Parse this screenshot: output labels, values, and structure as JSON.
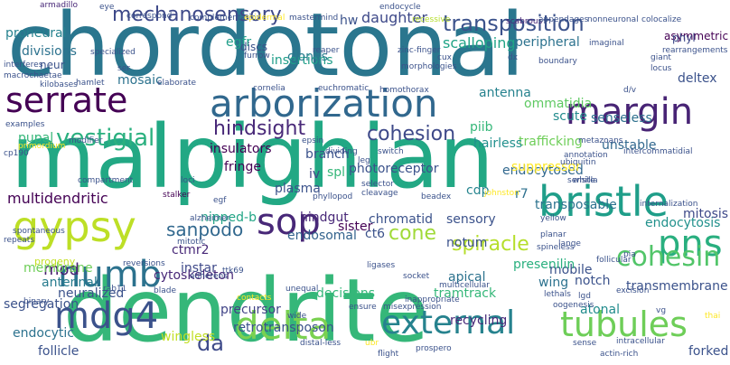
{
  "words": [
    {
      "text": "chordotonal",
      "color": "#2a768e",
      "weight": "xl"
    },
    {
      "text": "malpighian",
      "color": "#22a884",
      "weight": "xl"
    },
    {
      "text": "dendrite",
      "color": "#35b779",
      "weight": "xl"
    },
    {
      "text": "serrate",
      "color": "#440154",
      "weight": "l"
    },
    {
      "text": "arborization",
      "color": "#31688e",
      "weight": "l"
    },
    {
      "text": "margin",
      "color": "#482475",
      "weight": "l"
    },
    {
      "text": "gypsy",
      "color": "#bddf26",
      "weight": "l"
    },
    {
      "text": "bristle",
      "color": "#1f9e89",
      "weight": "l"
    },
    {
      "text": "numb",
      "color": "#2c728e",
      "weight": "l"
    },
    {
      "text": "mdg4",
      "color": "#3b528b",
      "weight": "l"
    },
    {
      "text": "sop",
      "color": "#482878",
      "weight": "l"
    },
    {
      "text": "delta",
      "color": "#7ad151",
      "weight": "l"
    },
    {
      "text": "external",
      "color": "#26828e",
      "weight": "l"
    },
    {
      "text": "tubules",
      "color": "#6ece58",
      "weight": "l"
    },
    {
      "text": "pns",
      "color": "#29af7f",
      "weight": "l"
    },
    {
      "text": "cohesin",
      "color": "#52c569",
      "weight": "m"
    },
    {
      "text": "mechanosensory",
      "color": "#3e4989",
      "weight": "m"
    },
    {
      "text": "transposition",
      "color": "#3b528b",
      "weight": "m"
    },
    {
      "text": "vestigial",
      "color": "#2ab07f",
      "weight": "m"
    },
    {
      "text": "hindsight",
      "color": "#482878",
      "weight": "m"
    },
    {
      "text": "cohesion",
      "color": "#3e4989",
      "weight": "m"
    },
    {
      "text": "sanpodo",
      "color": "#31688e",
      "weight": "m"
    },
    {
      "text": "cone",
      "color": "#a0da39",
      "weight": "m"
    },
    {
      "text": "spiracle",
      "color": "#b5de2b",
      "weight": "m"
    },
    {
      "text": "mod",
      "color": "#481f70",
      "weight": "m"
    },
    {
      "text": "da",
      "color": "#3e4a89",
      "weight": "m"
    },
    {
      "text": "daughter",
      "color": "#3e4989",
      "weight": "s"
    },
    {
      "text": "scalloping",
      "color": "#20a486",
      "weight": "s"
    },
    {
      "text": "peripheral",
      "color": "#2c728e",
      "weight": "s"
    },
    {
      "text": "proneural",
      "color": "#26828e",
      "weight": "s"
    },
    {
      "text": "insertions",
      "color": "#1f9e89",
      "weight": "s"
    },
    {
      "text": "egfr",
      "color": "#1f9e89",
      "weight": "s"
    },
    {
      "text": "clones",
      "color": "#287c8e",
      "weight": "s"
    },
    {
      "text": "hw",
      "color": "#3b528b",
      "weight": "s"
    },
    {
      "text": "antenna",
      "color": "#26828e",
      "weight": "s"
    },
    {
      "text": "ommatidia",
      "color": "#5ec962",
      "weight": "s"
    },
    {
      "text": "senseless",
      "color": "#2d708e",
      "weight": "s"
    },
    {
      "text": "piib",
      "color": "#35b779",
      "weight": "s"
    },
    {
      "text": "scute",
      "color": "#228c8d",
      "weight": "s"
    },
    {
      "text": "pupal",
      "color": "#35b779",
      "weight": "s"
    },
    {
      "text": "insulators",
      "color": "#440154",
      "weight": "s"
    },
    {
      "text": "trafficking",
      "color": "#6ece58",
      "weight": "s"
    },
    {
      "text": "hairless",
      "color": "#21908d",
      "weight": "s"
    },
    {
      "text": "unstable",
      "color": "#31688e",
      "weight": "s"
    },
    {
      "text": "multidendritic",
      "color": "#440154",
      "weight": "s"
    },
    {
      "text": "spl",
      "color": "#35b779",
      "weight": "s"
    },
    {
      "text": "iv",
      "color": "#414487",
      "weight": "s"
    },
    {
      "text": "plasma",
      "color": "#3b528b",
      "weight": "s"
    },
    {
      "text": "cdp",
      "color": "#25848e",
      "weight": "s"
    },
    {
      "text": "r7",
      "color": "#2d708e",
      "weight": "s"
    },
    {
      "text": "endocytosed",
      "color": "#31688e",
      "weight": "s"
    },
    {
      "text": "transposable",
      "color": "#2c728e",
      "weight": "s"
    },
    {
      "text": "endocytosis",
      "color": "#21918c",
      "weight": "s"
    },
    {
      "text": "sensory",
      "color": "#3b528b",
      "weight": "s"
    },
    {
      "text": "hindgut",
      "color": "#482878",
      "weight": "s"
    },
    {
      "text": "chromatid",
      "color": "#3b528b",
      "weight": "s"
    },
    {
      "text": "sister",
      "color": "#440154",
      "weight": "s"
    },
    {
      "text": "ct6",
      "color": "#3b528b",
      "weight": "s"
    },
    {
      "text": "nipped-b",
      "color": "#21a585",
      "weight": "s"
    },
    {
      "text": "endosomal",
      "color": "#33638d",
      "weight": "s"
    },
    {
      "text": "notum",
      "color": "#3b528b",
      "weight": "s"
    },
    {
      "text": "fringe",
      "color": "#440154",
      "weight": "s"
    },
    {
      "text": "ctmr2",
      "color": "#482878",
      "weight": "s"
    },
    {
      "text": "instar",
      "color": "#3e4989",
      "weight": "s"
    },
    {
      "text": "antennal",
      "color": "#287c8e",
      "weight": "s"
    },
    {
      "text": "neuralized",
      "color": "#3b528b",
      "weight": "s"
    },
    {
      "text": "apical",
      "color": "#2c728e",
      "weight": "s"
    },
    {
      "text": "tramtrack",
      "color": "#35b779",
      "weight": "s"
    },
    {
      "text": "wing",
      "color": "#2c728e",
      "weight": "s"
    },
    {
      "text": "mobile",
      "color": "#3b528b",
      "weight": "s"
    },
    {
      "text": "notch",
      "color": "#3b528b",
      "weight": "s"
    },
    {
      "text": "atonal",
      "color": "#228c8d",
      "weight": "s"
    },
    {
      "text": "precursor",
      "color": "#414487",
      "weight": "s"
    },
    {
      "text": "retrotransposon",
      "color": "#3b528b",
      "weight": "s"
    },
    {
      "text": "wingless",
      "color": "#c2df23",
      "weight": "s"
    },
    {
      "text": "follicle",
      "color": "#3b528b",
      "weight": "s"
    },
    {
      "text": "recycling",
      "color": "#482878",
      "weight": "s"
    },
    {
      "text": "segregation",
      "color": "#3b528b",
      "weight": "s"
    },
    {
      "text": "decisions",
      "color": "#35b779",
      "weight": "s"
    },
    {
      "text": "presenilin",
      "color": "#2ab07f",
      "weight": "s"
    },
    {
      "text": "transmembrane",
      "color": "#3b528b",
      "weight": "s"
    },
    {
      "text": "mitosis",
      "color": "#3e4989",
      "weight": "s"
    },
    {
      "text": "deltex",
      "color": "#3b528b",
      "weight": "s"
    },
    {
      "text": "forked",
      "color": "#3b528b",
      "weight": "s"
    },
    {
      "text": "membrane",
      "color": "#6ece58",
      "weight": "s"
    },
    {
      "text": "endocytic",
      "color": "#2c728e",
      "weight": "s"
    },
    {
      "text": "cytoskeleton",
      "color": "#482878",
      "weight": "s"
    },
    {
      "text": "photoreceptor",
      "color": "#3b528b",
      "weight": "s"
    },
    {
      "text": "suppressor",
      "color": "#fde725",
      "weight": "s"
    },
    {
      "text": "branch",
      "color": "#3b528b",
      "weight": "s"
    },
    {
      "text": "divisions",
      "color": "#2c728e",
      "weight": "s"
    },
    {
      "text": "neur",
      "color": "#3b528b",
      "weight": "s"
    },
    {
      "text": "mosaic",
      "color": "#2c728e",
      "weight": "s"
    },
    {
      "text": "progeny",
      "color": "#c2df23",
      "weight": "xs"
    },
    {
      "text": "asymmetric",
      "color": "#440154",
      "weight": "xs"
    },
    {
      "text": "phyl",
      "color": "#3e4989",
      "weight": "xs"
    },
    {
      "text": "armadillo",
      "color": "#482878",
      "weight": "xs"
    },
    {
      "text": "eye",
      "color": "#3b528b",
      "weight": "xs"
    },
    {
      "text": "correspond",
      "color": "#3b528b",
      "weight": "xs"
    },
    {
      "text": "complementation",
      "color": "#3b528b",
      "weight": "xs"
    },
    {
      "text": "epidermal",
      "color": "#fde725",
      "weight": "xs"
    },
    {
      "text": "mastermind",
      "color": "#3b528b",
      "weight": "xs"
    },
    {
      "text": "recessive",
      "color": "#b5de2b",
      "weight": "xs"
    },
    {
      "text": "scabrous",
      "color": "#482878",
      "weight": "xs"
    },
    {
      "text": "appendages",
      "color": "#3b528b",
      "weight": "xs"
    },
    {
      "text": "nonneuronal",
      "color": "#3b528b",
      "weight": "xs"
    },
    {
      "text": "colocalize",
      "color": "#3b528b",
      "weight": "xs"
    },
    {
      "text": "endocycle",
      "color": "#3b528b",
      "weight": "xs"
    },
    {
      "text": "interferes",
      "color": "#3b528b",
      "weight": "xs"
    },
    {
      "text": "macrochaetae",
      "color": "#3b528b",
      "weight": "xs"
    },
    {
      "text": "kilobases",
      "color": "#3b528b",
      "weight": "xs"
    },
    {
      "text": "hamlet",
      "color": "#3b528b",
      "weight": "xs"
    },
    {
      "text": "elaborate",
      "color": "#3b528b",
      "weight": "xs"
    },
    {
      "text": "specialized",
      "color": "#3b528b",
      "weight": "xs"
    },
    {
      "text": "ser",
      "color": "#3b528b",
      "weight": "xs"
    },
    {
      "text": "discs",
      "color": "#3b528b",
      "weight": "xs"
    },
    {
      "text": "furrow",
      "color": "#3b528b",
      "weight": "xs"
    },
    {
      "text": "reaper",
      "color": "#3b528b",
      "weight": "xs"
    },
    {
      "text": "zinc-finger",
      "color": "#3b528b",
      "weight": "xs"
    },
    {
      "text": "morphologies",
      "color": "#3b528b",
      "weight": "xs"
    },
    {
      "text": "cux",
      "color": "#3b528b",
      "weight": "xs"
    },
    {
      "text": "dx",
      "color": "#3b528b",
      "weight": "xs"
    },
    {
      "text": "boundary",
      "color": "#3b528b",
      "weight": "xs"
    },
    {
      "text": "imaginal",
      "color": "#3b528b",
      "weight": "xs"
    },
    {
      "text": "giant",
      "color": "#3b528b",
      "weight": "xs"
    },
    {
      "text": "locus",
      "color": "#3b528b",
      "weight": "xs"
    },
    {
      "text": "rearrangements",
      "color": "#3b528b",
      "weight": "xs"
    },
    {
      "text": "d/v",
      "color": "#3b528b",
      "weight": "xs"
    },
    {
      "text": "euchromatic",
      "color": "#3b528b",
      "weight": "xs"
    },
    {
      "text": "homothorax",
      "color": "#3b528b",
      "weight": "xs"
    },
    {
      "text": "cornelia",
      "color": "#3b528b",
      "weight": "xs"
    },
    {
      "text": "examples",
      "color": "#3b528b",
      "weight": "xs"
    },
    {
      "text": "cp190",
      "color": "#3b528b",
      "weight": "xs"
    },
    {
      "text": "primordium",
      "color": "#fde725",
      "weight": "xs"
    },
    {
      "text": "modifier",
      "color": "#3b528b",
      "weight": "xs"
    },
    {
      "text": "switch",
      "color": "#3b528b",
      "weight": "xs"
    },
    {
      "text": "epsin",
      "color": "#3b528b",
      "weight": "xs"
    },
    {
      "text": "dividing",
      "color": "#3b528b",
      "weight": "xs"
    },
    {
      "text": "leg",
      "color": "#3b528b",
      "weight": "xs"
    },
    {
      "text": "annotation",
      "color": "#3b528b",
      "weight": "xs"
    },
    {
      "text": "ubiquitin",
      "color": "#3b528b",
      "weight": "xs"
    },
    {
      "text": "intercommatidial",
      "color": "#3b528b",
      "weight": "xs"
    },
    {
      "text": "metazoans",
      "color": "#3b528b",
      "weight": "xs"
    },
    {
      "text": "stalker",
      "color": "#440154",
      "weight": "xs"
    },
    {
      "text": "repeats",
      "color": "#3b528b",
      "weight": "xs"
    },
    {
      "text": "spontaneous",
      "color": "#3b528b",
      "weight": "xs"
    },
    {
      "text": "mitotic",
      "color": "#3b528b",
      "weight": "xs"
    },
    {
      "text": "compartment",
      "color": "#3b528b",
      "weight": "xs"
    },
    {
      "text": "loci",
      "color": "#3b528b",
      "weight": "xs"
    },
    {
      "text": "egf",
      "color": "#3b528b",
      "weight": "xs"
    },
    {
      "text": "phyllopod",
      "color": "#3b528b",
      "weight": "xs"
    },
    {
      "text": "selector",
      "color": "#3b528b",
      "weight": "xs"
    },
    {
      "text": "cleavage",
      "color": "#3b528b",
      "weight": "xs"
    },
    {
      "text": "beadex",
      "color": "#3b528b",
      "weight": "xs"
    },
    {
      "text": "johnston",
      "color": "#fde725",
      "weight": "xs"
    },
    {
      "text": "sensilla",
      "color": "#3b528b",
      "weight": "xs"
    },
    {
      "text": "white",
      "color": "#3b528b",
      "weight": "xs"
    },
    {
      "text": "yellow",
      "color": "#3b528b",
      "weight": "xs"
    },
    {
      "text": "alzheimer",
      "color": "#3b528b",
      "weight": "xs"
    },
    {
      "text": "internalization",
      "color": "#3b528b",
      "weight": "xs"
    },
    {
      "text": "reversions",
      "color": "#3b528b",
      "weight": "xs"
    },
    {
      "text": "adherens",
      "color": "#3b528b",
      "weight": "xs"
    },
    {
      "text": "ttk69",
      "color": "#3b528b",
      "weight": "xs"
    },
    {
      "text": "ligases",
      "color": "#3b528b",
      "weight": "xs"
    },
    {
      "text": "socket",
      "color": "#3b528b",
      "weight": "xs"
    },
    {
      "text": "spineless",
      "color": "#3b528b",
      "weight": "xs"
    },
    {
      "text": "lange",
      "color": "#3b528b",
      "weight": "xs"
    },
    {
      "text": "pia",
      "color": "#3b528b",
      "weight": "xs"
    },
    {
      "text": "follicular",
      "color": "#3b528b",
      "weight": "xs"
    },
    {
      "text": "rab11",
      "color": "#3b528b",
      "weight": "xs"
    },
    {
      "text": "blade",
      "color": "#3b528b",
      "weight": "xs"
    },
    {
      "text": "unequal",
      "color": "#3b528b",
      "weight": "xs"
    },
    {
      "text": "inappropriate",
      "color": "#3b528b",
      "weight": "xs"
    },
    {
      "text": "multicellular",
      "color": "#3b528b",
      "weight": "xs"
    },
    {
      "text": "lethals",
      "color": "#3b528b",
      "weight": "xs"
    },
    {
      "text": "lgd",
      "color": "#3b528b",
      "weight": "xs"
    },
    {
      "text": "excision",
      "color": "#3b528b",
      "weight": "xs"
    },
    {
      "text": "oogenesis",
      "color": "#3b528b",
      "weight": "xs"
    },
    {
      "text": "vg",
      "color": "#3b528b",
      "weight": "xs"
    },
    {
      "text": "binary",
      "color": "#3b528b",
      "weight": "xs"
    },
    {
      "text": "contacts",
      "color": "#fde725",
      "weight": "xs"
    },
    {
      "text": "wide",
      "color": "#3b528b",
      "weight": "xs"
    },
    {
      "text": "ensure",
      "color": "#3b528b",
      "weight": "xs"
    },
    {
      "text": "misexpression",
      "color": "#3b528b",
      "weight": "xs"
    },
    {
      "text": "distal-less",
      "color": "#3b528b",
      "weight": "xs"
    },
    {
      "text": "prospero",
      "color": "#3b528b",
      "weight": "xs"
    },
    {
      "text": "sense",
      "color": "#3b528b",
      "weight": "xs"
    },
    {
      "text": "actin-rich",
      "color": "#3b528b",
      "weight": "xs"
    },
    {
      "text": "flight",
      "color": "#3b528b",
      "weight": "xs"
    },
    {
      "text": "ubr",
      "color": "#fde725",
      "weight": "xs"
    },
    {
      "text": "thai",
      "color": "#fde725",
      "weight": "xs"
    },
    {
      "text": "planar",
      "color": "#3b528b",
      "weight": "xs"
    },
    {
      "text": "intracellular",
      "color": "#3b528b",
      "weight": "xs"
    }
  ]
}
